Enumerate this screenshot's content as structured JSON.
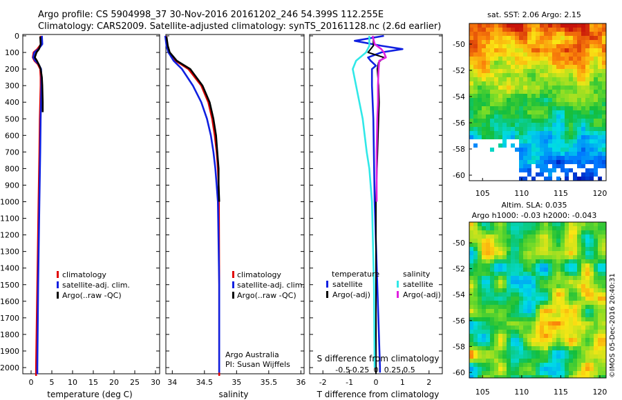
{
  "header": {
    "line1": "Argo profile: CS 5904998_37 30-Nov-2016 20161202_246 54.399S 112.255E",
    "line2": "Climatology: CARS2009. Satellite-adjusted climatology: synTS_20161128.nc (2.6d earlier)"
  },
  "side_stamp": "©IMOS 05-Dec-2016 20:40:31",
  "colors": {
    "climatology": "#e00000",
    "satellite_adj": "#1020e0",
    "argo": "#000000",
    "satellite_S": "#30e8e8",
    "argo_adj_S": "#e020e0"
  },
  "panels": {
    "temp": {
      "xlabel": "temperature (deg C)",
      "xticks": [
        "0",
        "5",
        "10",
        "15",
        "20",
        "25",
        "30"
      ],
      "legend": [
        "climatology",
        "satellite-adj. clim.",
        "Argo(..raw -QC)"
      ]
    },
    "sal": {
      "xlabel": "salinity",
      "xticks": [
        "34",
        "34.5",
        "35",
        "35.5",
        "36"
      ],
      "legend": [
        "climatology",
        "satellite-adj. clim.",
        "Argo(..raw -QC)"
      ],
      "note1": "Argo Australia",
      "note2": "PI: Susan Wijffels"
    },
    "diff": {
      "xlabel": "T difference from climatology",
      "xlabel_top": "S difference from climatology",
      "xticks": [
        "-2",
        "-1",
        "0",
        "1",
        "2"
      ],
      "sticks": [
        "-0.5",
        "-0.25",
        "0",
        "0.25",
        "0.5"
      ],
      "head_t": "temperature",
      "head_s": "salinity",
      "leg_t": [
        "satellite",
        "Argo(-adj)"
      ],
      "leg_s": [
        "satellite",
        "Argo(-adj)"
      ]
    }
  },
  "depth_ticks": [
    "0",
    "100",
    "200",
    "300",
    "400",
    "500",
    "600",
    "700",
    "800",
    "900",
    "1000",
    "1100",
    "1200",
    "1300",
    "1400",
    "1500",
    "1600",
    "1700",
    "1800",
    "1900",
    "2000"
  ],
  "maps": {
    "sst": {
      "title": "sat. SST: 2.06 Argo: 2.15",
      "xticks": [
        "105",
        "110",
        "115",
        "120"
      ],
      "yticks": [
        "-50",
        "-52",
        "-54",
        "-56",
        "-58",
        "-60"
      ]
    },
    "sla": {
      "title1": "Altim. SLA: 0.035",
      "title2": "Argo h1000: -0.03 h2000: -0.043",
      "xticks": [
        "105",
        "110",
        "115",
        "120"
      ],
      "yticks": [
        "-50",
        "-52",
        "-54",
        "-56",
        "-58",
        "-60"
      ]
    }
  },
  "chart_data": [
    {
      "type": "line",
      "title": "",
      "xlabel": "temperature (deg C)",
      "ylabel": "",
      "xlim": [
        -2,
        31
      ],
      "ylim": [
        2050,
        0
      ],
      "series": [
        {
          "name": "climatology",
          "depth": [
            0,
            50,
            80,
            100,
            130,
            150,
            170,
            200,
            250,
            300,
            400,
            500,
            700,
            1000,
            1500,
            2000,
            2050
          ],
          "values": [
            2.3,
            2.4,
            1.5,
            0.6,
            0.4,
            0.8,
            1.6,
            2.2,
            2.3,
            2.3,
            2.2,
            2.1,
            2.0,
            1.8,
            1.5,
            1.2,
            1.2
          ]
        },
        {
          "name": "satellite-adj. clim.",
          "depth": [
            0,
            50,
            80,
            100,
            130,
            150,
            170,
            200,
            250,
            300,
            400,
            500,
            700,
            1000,
            1500,
            2000,
            2040
          ],
          "values": [
            2.6,
            2.7,
            1.8,
            0.8,
            0.5,
            1.0,
            1.8,
            2.4,
            2.5,
            2.5,
            2.4,
            2.3,
            2.2,
            2.0,
            1.7,
            1.5,
            1.5
          ]
        },
        {
          "name": "Argo(..raw -QC)",
          "depth": [
            5,
            50,
            80,
            100,
            130,
            150,
            180,
            200,
            250,
            300,
            400,
            460
          ],
          "values": [
            2.2,
            2.3,
            1.9,
            1.3,
            0.9,
            1.4,
            2.0,
            2.3,
            2.6,
            2.7,
            2.8,
            2.8
          ]
        }
      ]
    },
    {
      "type": "line",
      "title": "",
      "xlabel": "salinity",
      "ylabel": "",
      "xlim": [
        33.9,
        36.05
      ],
      "ylim": [
        2050,
        0
      ],
      "series": [
        {
          "name": "climatology",
          "depth": [
            0,
            60,
            100,
            150,
            200,
            300,
            400,
            500,
            600,
            700,
            800,
            900,
            1000,
            1500,
            2000,
            2050
          ],
          "values": [
            33.9,
            33.92,
            33.95,
            34.05,
            34.25,
            34.45,
            34.56,
            34.62,
            34.66,
            34.69,
            34.71,
            34.72,
            34.725,
            34.73,
            34.73,
            34.73
          ]
        },
        {
          "name": "satellite-adj. clim.",
          "depth": [
            0,
            60,
            100,
            150,
            200,
            300,
            400,
            500,
            600,
            700,
            800,
            900,
            1000,
            1500,
            2000,
            2030
          ],
          "values": [
            33.89,
            33.91,
            33.94,
            34.02,
            34.15,
            34.32,
            34.45,
            34.54,
            34.6,
            34.64,
            34.67,
            34.69,
            34.71,
            34.73,
            34.73,
            34.73
          ]
        },
        {
          "name": "Argo(..raw -QC)",
          "depth": [
            5,
            60,
            100,
            150,
            200,
            300,
            400,
            500,
            600,
            700,
            800,
            900,
            1000
          ],
          "values": [
            33.91,
            33.93,
            33.96,
            34.07,
            34.28,
            34.47,
            34.58,
            34.64,
            34.68,
            34.7,
            34.72,
            34.72,
            34.73
          ]
        }
      ]
    },
    {
      "type": "line",
      "title": "",
      "xlabel": "T difference from climatology",
      "ylabel": "",
      "xlim": [
        -2.5,
        2.5
      ],
      "ylim": [
        2050,
        0
      ],
      "series": [
        {
          "name": "temperature satellite",
          "depth": [
            0,
            30,
            60,
            80,
            100,
            130,
            150,
            180,
            200,
            300,
            500,
            1000,
            1500,
            2000,
            2030
          ],
          "values": [
            0.3,
            -0.8,
            0.2,
            1.0,
            0.2,
            -0.3,
            -0.2,
            0,
            -0.15,
            -0.15,
            -0.1,
            -0.05,
            0.05,
            0.15,
            0.15
          ]
        },
        {
          "name": "temperature Argo(-adj)",
          "depth": [
            5,
            60,
            100,
            130,
            160,
            200,
            300,
            400,
            500,
            1000,
            1500,
            2000,
            2040
          ],
          "values": [
            -0.1,
            -0.1,
            -0.3,
            0.3,
            0.1,
            0.05,
            0.1,
            0.12,
            0.1,
            0,
            0,
            0,
            0
          ]
        },
        {
          "name": "salinity satellite",
          "depth": [
            0,
            60,
            100,
            150,
            200,
            300,
            400,
            500,
            600,
            700,
            800,
            900,
            1000,
            1500,
            2000
          ],
          "values": [
            -0.1,
            -0.1,
            -0.15,
            -0.3,
            -0.35,
            -0.3,
            -0.25,
            -0.2,
            -0.17,
            -0.14,
            -0.1,
            -0.08,
            -0.06,
            -0.03,
            -0.02
          ]
        },
        {
          "name": "salinity Argo(-adj)",
          "depth": [
            0,
            50,
            80,
            100,
            130,
            150,
            200,
            300,
            400,
            500,
            700,
            1000
          ],
          "values": [
            -0.05,
            -0.02,
            0.08,
            0.12,
            0.15,
            0.05,
            0.04,
            0.03,
            0.03,
            0.02,
            0.01,
            0.01
          ]
        }
      ]
    }
  ]
}
